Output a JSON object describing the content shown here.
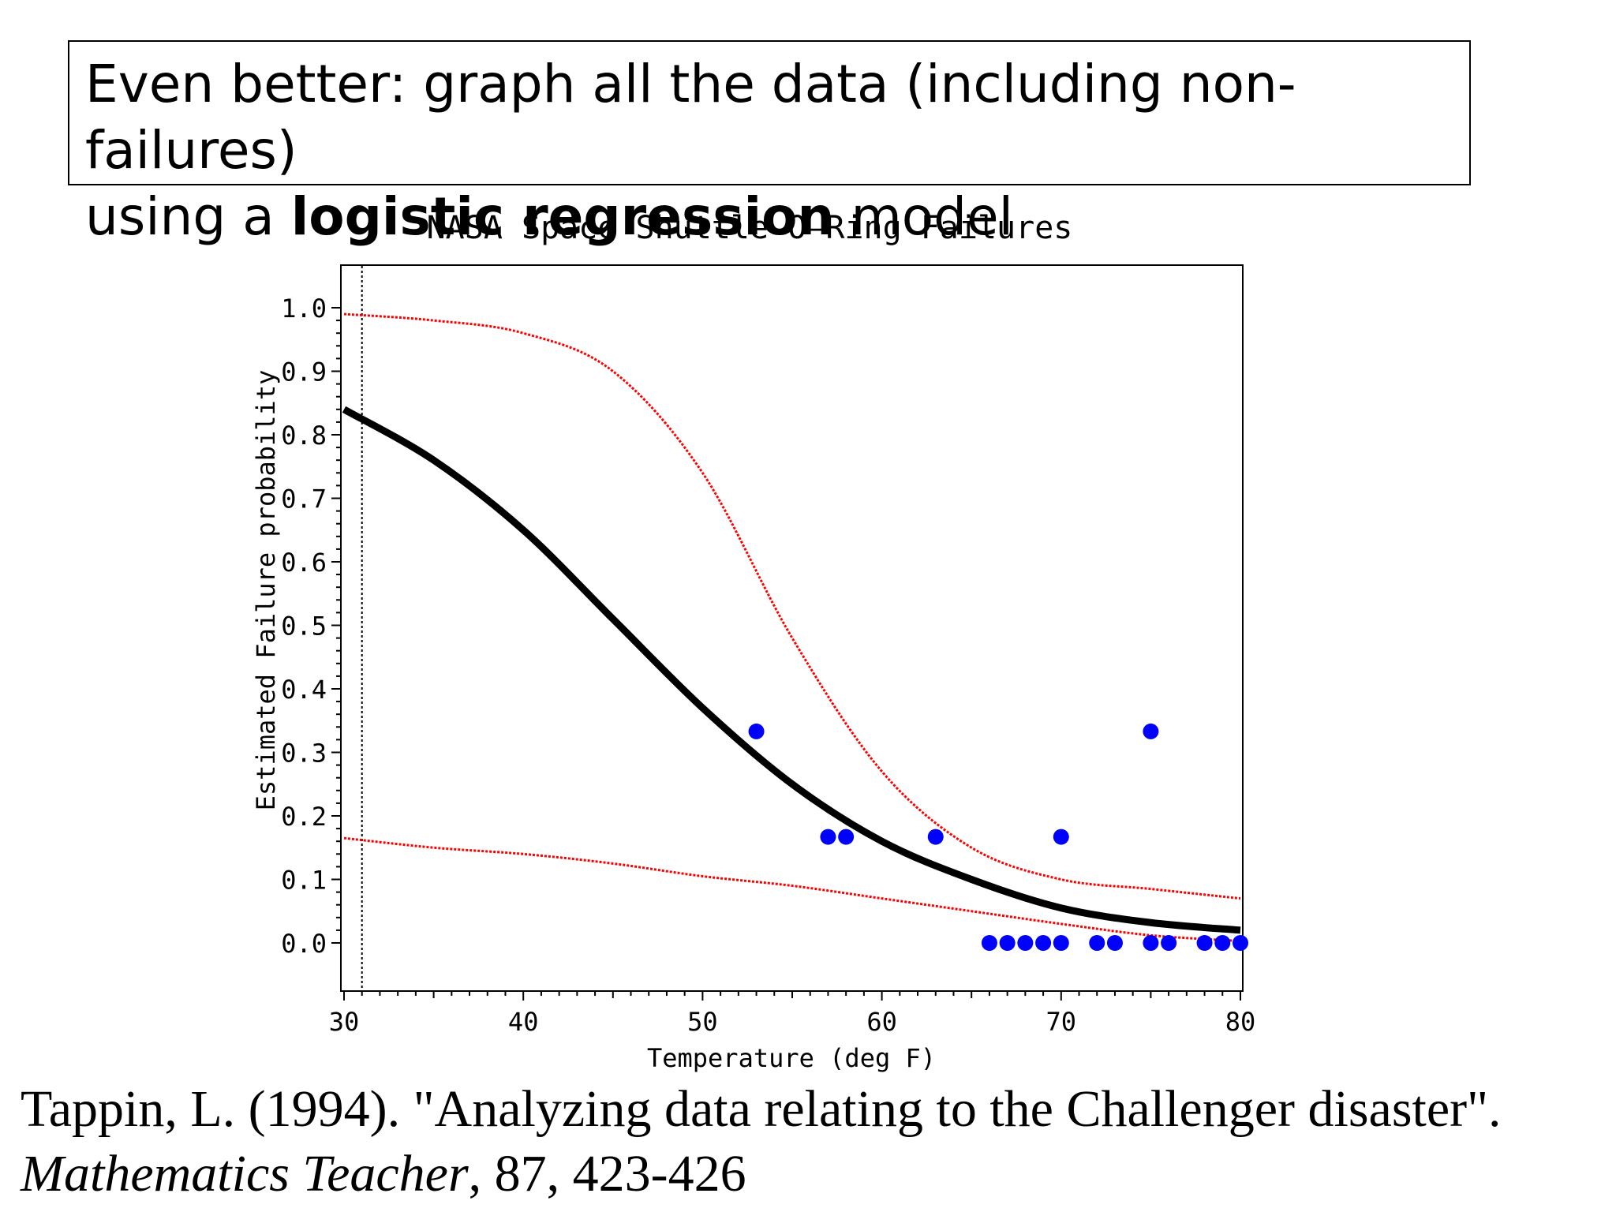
{
  "header": {
    "line1": "Even better: graph all the data (including non-failures)",
    "line2_pre": "using a ",
    "line2_bold": "logistic regression",
    "line2_post": " model"
  },
  "chart_data": {
    "type": "scatter",
    "title": "NASA Space Shuttle O—Ring Failures",
    "xlabel": "Temperature (deg F)",
    "ylabel": "Estimated Failure probability",
    "xlim": [
      30,
      80
    ],
    "ylim": [
      0,
      1
    ],
    "xticks": [
      30,
      40,
      50,
      60,
      70,
      80
    ],
    "xtick_labels": [
      "30",
      "40",
      "50",
      "60",
      "70",
      "80"
    ],
    "yticks": [
      0,
      0.1,
      0.2,
      0.3,
      0.4,
      0.5,
      0.6,
      0.7,
      0.8,
      0.9,
      1.0
    ],
    "ytick_labels": [
      "0.0",
      "0.1",
      "0.2",
      "0.3",
      "0.4",
      "0.5",
      "0.6",
      "0.7",
      "0.8",
      "0.9",
      "1.0"
    ],
    "reference_line_x": 31,
    "colors": {
      "points": "#0000ff",
      "fit": "#000000",
      "bands": "#ff0000"
    },
    "points": [
      {
        "x": 53,
        "y": 0.333
      },
      {
        "x": 57,
        "y": 0.167
      },
      {
        "x": 58,
        "y": 0.167
      },
      {
        "x": 63,
        "y": 0.167
      },
      {
        "x": 70,
        "y": 0.167
      },
      {
        "x": 75,
        "y": 0.333
      },
      {
        "x": 66,
        "y": 0
      },
      {
        "x": 67,
        "y": 0
      },
      {
        "x": 68,
        "y": 0
      },
      {
        "x": 69,
        "y": 0
      },
      {
        "x": 70,
        "y": 0
      },
      {
        "x": 72,
        "y": 0
      },
      {
        "x": 73,
        "y": 0
      },
      {
        "x": 75,
        "y": 0
      },
      {
        "x": 76,
        "y": 0
      },
      {
        "x": 78,
        "y": 0
      },
      {
        "x": 79,
        "y": 0
      },
      {
        "x": 80,
        "y": 0
      }
    ],
    "fitted_curve": {
      "x": [
        30,
        35,
        40,
        45,
        50,
        55,
        60,
        65,
        70,
        75,
        80
      ],
      "y": [
        0.84,
        0.76,
        0.65,
        0.51,
        0.37,
        0.25,
        0.16,
        0.1,
        0.055,
        0.032,
        0.02
      ]
    },
    "upper_band": {
      "x": [
        30,
        35,
        40,
        45,
        50,
        55,
        60,
        65,
        70,
        75,
        80
      ],
      "y": [
        0.99,
        0.98,
        0.96,
        0.9,
        0.74,
        0.48,
        0.27,
        0.15,
        0.1,
        0.085,
        0.07
      ]
    },
    "lower_band": {
      "x": [
        30,
        35,
        40,
        45,
        50,
        55,
        60,
        65,
        70,
        75,
        80
      ],
      "y": [
        0.165,
        0.15,
        0.14,
        0.125,
        0.105,
        0.09,
        0.07,
        0.05,
        0.03,
        0.012,
        0.003
      ]
    }
  },
  "citation": {
    "line1": "Tappin, L. (1994). \"Analyzing data relating to the Challenger disaster\".",
    "journal": "Mathematics Teacher",
    "rest": ", 87, 423-426"
  }
}
